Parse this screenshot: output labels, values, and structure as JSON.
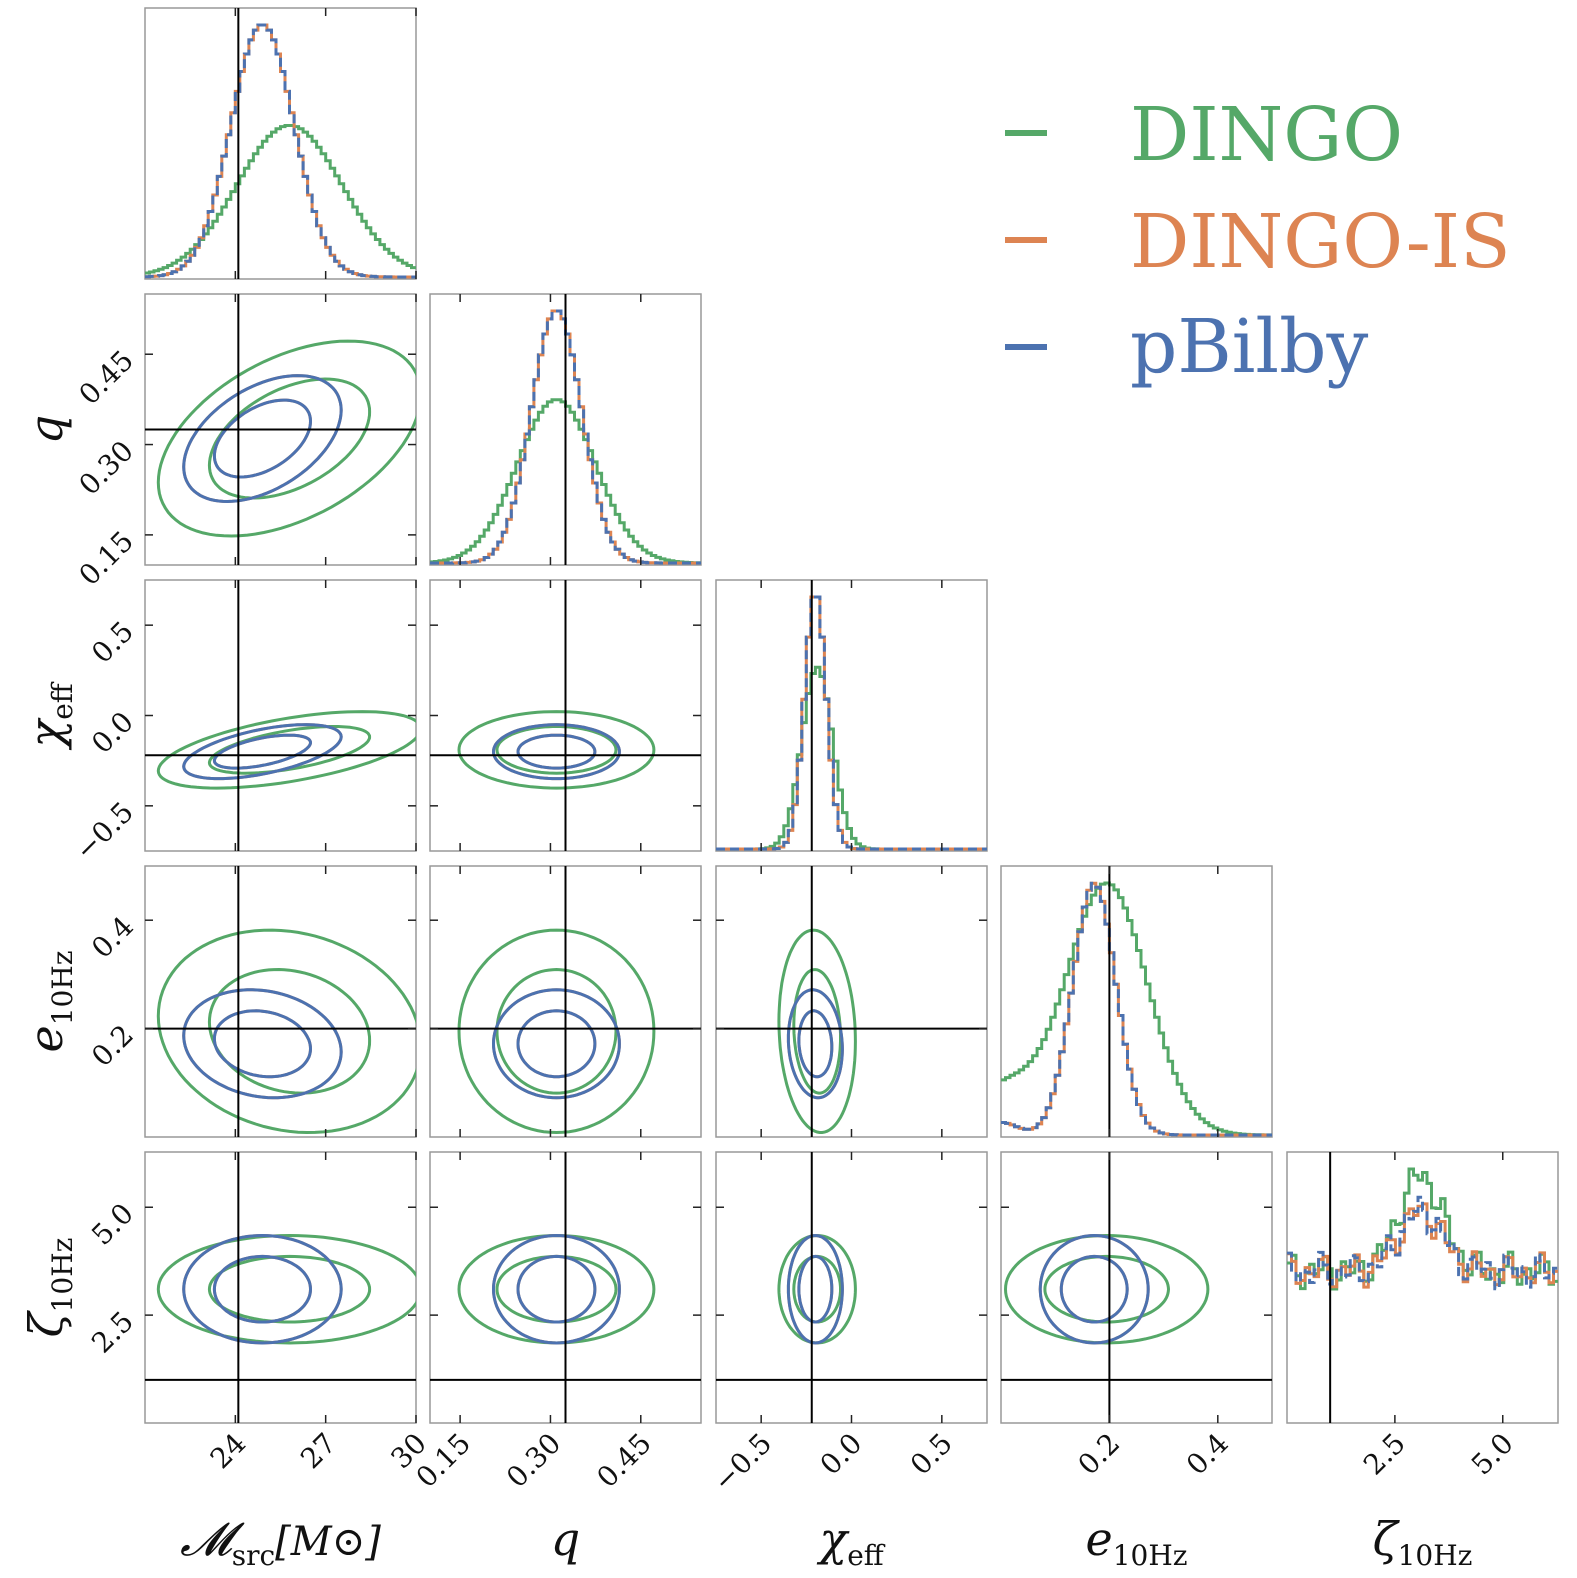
{
  "chart_data": {
    "type": "corner",
    "colors": {
      "DINGO": "#55a868",
      "DINGO-IS": "#dd8452",
      "pBilby": "#4c72b0",
      "truth": "#000000"
    },
    "legend": {
      "position": "top-right",
      "entries": [
        "DINGO",
        "DINGO-IS",
        "pBilby"
      ]
    },
    "parameters": [
      {
        "key": "mc",
        "label_main": "𝓜",
        "label_sub": "src",
        "label_suffix": "[M⊙]",
        "range": [
          21.0,
          30.0
        ],
        "truth": 24.1,
        "ticks": [
          24,
          27,
          30
        ],
        "tick_labels": [
          "24",
          "27",
          "30"
        ],
        "posteriors": {
          "DINGO": {
            "mean": 25.8,
            "sd": 1.75
          },
          "DINGO-IS": {
            "mean": 24.9,
            "sd": 1.05
          },
          "pBilby": {
            "mean": 24.9,
            "sd": 1.05
          }
        }
      },
      {
        "key": "q",
        "label_main": "q",
        "label_sub": "",
        "label_suffix": "",
        "range": [
          0.1,
          0.55
        ],
        "truth": 0.325,
        "ticks": [
          0.15,
          0.3,
          0.45
        ],
        "tick_labels": [
          "0.15",
          "0.30",
          "0.45"
        ],
        "posteriors": {
          "DINGO": {
            "mean": 0.31,
            "sd": 0.065
          },
          "DINGO-IS": {
            "mean": 0.31,
            "sd": 0.042
          },
          "pBilby": {
            "mean": 0.31,
            "sd": 0.042
          }
        }
      },
      {
        "key": "chi",
        "label_main": "χ",
        "label_sub": "eff",
        "label_suffix": "",
        "range": [
          -0.75,
          0.75
        ],
        "truth": -0.22,
        "ticks": [
          -0.5,
          0.0,
          0.5
        ],
        "tick_labels": [
          "−0.5",
          "0.0",
          "0.5"
        ],
        "posteriors": {
          "DINGO": {
            "mean": -0.19,
            "sd": 0.085
          },
          "DINGO-IS": {
            "mean": -0.2,
            "sd": 0.06
          },
          "pBilby": {
            "mean": -0.2,
            "sd": 0.06
          }
        }
      },
      {
        "key": "e",
        "label_main": "e",
        "label_sub": "10Hz",
        "label_suffix": "",
        "range": [
          0.0,
          0.5
        ],
        "truth": 0.2,
        "ticks": [
          0.2,
          0.4
        ],
        "tick_labels": [
          "0.2",
          "0.4"
        ],
        "posteriors": {
          "DINGO": {
            "mean": 0.195,
            "sd": 0.075
          },
          "DINGO-IS": {
            "mean": 0.172,
            "sd": 0.04
          },
          "pBilby": {
            "mean": 0.172,
            "sd": 0.04
          }
        }
      },
      {
        "key": "zeta",
        "label_main": "ζ",
        "label_sub": "10Hz",
        "label_suffix": "",
        "range": [
          0.0,
          6.28
        ],
        "truth": 1.0,
        "ticks": [
          2.5,
          5.0
        ],
        "tick_labels": [
          "2.5",
          "5.0"
        ],
        "posteriors": {
          "DINGO": {
            "mean": 3.1,
            "sd": 0.5
          },
          "DINGO-IS": {
            "mean": 3.1,
            "sd": 0.5
          },
          "pBilby": {
            "mean": 3.1,
            "sd": 0.5
          }
        }
      }
    ],
    "series": [
      {
        "name": "DINGO",
        "style": "solid"
      },
      {
        "name": "DINGO-IS",
        "style": "solid"
      },
      {
        "name": "pBilby",
        "style": "dashed"
      }
    ],
    "contour_levels": [
      "1-sigma",
      "2-sigma"
    ]
  }
}
